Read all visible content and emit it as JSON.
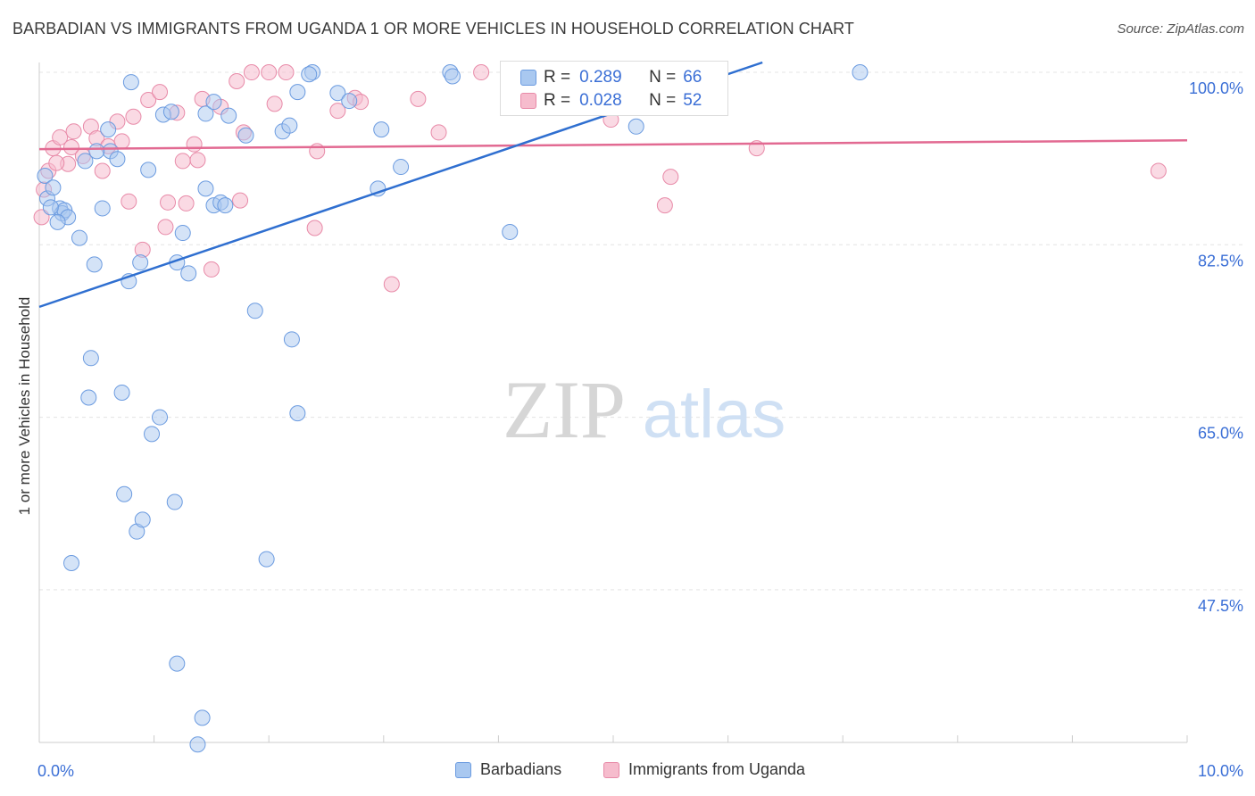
{
  "title": "BARBADIAN VS IMMIGRANTS FROM UGANDA 1 OR MORE VEHICLES IN HOUSEHOLD CORRELATION CHART",
  "source": "Source: ZipAtlas.com",
  "watermark": {
    "zip": "ZIP",
    "atlas": "atlas"
  },
  "legend": {
    "r_label": "R =",
    "n_label": "N =",
    "rows": [
      {
        "r": "0.289",
        "n": "66"
      },
      {
        "r": "0.028",
        "n": "52"
      }
    ]
  },
  "colors": {
    "blue_fill": "#a9c8f0",
    "blue_stroke": "#6b9be0",
    "blue_line": "#2f6fd0",
    "pink_fill": "#f6bccd",
    "pink_stroke": "#e88aa8",
    "pink_line": "#e26a92",
    "grid": "#e4e4e4",
    "axis_text": "#3b6fd6"
  },
  "chart_data": {
    "type": "scatter",
    "title": "BARBADIAN VS IMMIGRANTS FROM UGANDA 1 OR MORE VEHICLES IN HOUSEHOLD CORRELATION CHART",
    "xlabel": "",
    "ylabel": "1 or more Vehicles in Household",
    "xlim": [
      0,
      10
    ],
    "ylim": [
      32,
      101
    ],
    "x_tick_labels": [
      {
        "value": 0,
        "label": "0.0%"
      },
      {
        "value": 10,
        "label": "10.0%"
      }
    ],
    "y_tick_labels": [
      {
        "value": 100,
        "label": "100.0%"
      },
      {
        "value": 82.5,
        "label": "82.5%"
      },
      {
        "value": 65,
        "label": "65.0%"
      },
      {
        "value": 47.5,
        "label": "47.5%"
      }
    ],
    "series": [
      {
        "name": "Barbadians",
        "color": "#6b9be0",
        "trend": {
          "x": [
            0,
            6.3
          ],
          "y": [
            76.2,
            101
          ]
        },
        "points": [
          [
            0.05,
            89.5
          ],
          [
            0.07,
            87.2
          ],
          [
            0.12,
            88.3
          ],
          [
            0.18,
            86.2
          ],
          [
            0.2,
            85.7
          ],
          [
            0.22,
            86.0
          ],
          [
            0.35,
            83.2
          ],
          [
            0.4,
            91
          ],
          [
            0.48,
            80.5
          ],
          [
            0.55,
            86.2
          ],
          [
            0.6,
            94.2
          ],
          [
            0.62,
            92.0
          ],
          [
            0.68,
            91.2
          ],
          [
            0.78,
            78.8
          ],
          [
            0.8,
            99
          ],
          [
            0.88,
            80.7
          ],
          [
            0.95,
            90.1
          ],
          [
            0.98,
            63.3
          ],
          [
            1.05,
            65.0
          ],
          [
            1.08,
            95.7
          ],
          [
            1.15,
            96.0
          ],
          [
            1.2,
            80.7
          ],
          [
            1.25,
            83.7
          ],
          [
            1.3,
            79.6
          ],
          [
            1.45,
            88.2
          ],
          [
            1.45,
            95.8
          ],
          [
            1.52,
            97
          ],
          [
            1.52,
            86.5
          ],
          [
            1.58,
            86.8
          ],
          [
            1.62,
            86.5
          ],
          [
            1.65,
            95.6
          ],
          [
            1.8,
            93.6
          ],
          [
            1.88,
            75.8
          ],
          [
            2.12,
            94.0
          ],
          [
            2.18,
            94.6
          ],
          [
            2.2,
            72.9
          ],
          [
            2.25,
            98
          ],
          [
            2.25,
            65.4
          ],
          [
            2.38,
            100
          ],
          [
            2.6,
            97.9
          ],
          [
            2.7,
            97.1
          ],
          [
            2.95,
            88.2
          ],
          [
            2.98,
            94.2
          ],
          [
            3.15,
            90.4
          ],
          [
            3.58,
            100
          ],
          [
            4.1,
            83.8
          ],
          [
            5.2,
            94.5
          ],
          [
            7.15,
            100
          ],
          [
            0.45,
            71.0
          ],
          [
            0.43,
            67.0
          ],
          [
            0.72,
            67.5
          ],
          [
            0.74,
            57.2
          ],
          [
            0.85,
            53.4
          ],
          [
            0.9,
            54.6
          ],
          [
            1.18,
            56.4
          ],
          [
            0.28,
            50.2
          ],
          [
            1.98,
            50.6
          ],
          [
            1.2,
            40.0
          ],
          [
            1.42,
            34.5
          ],
          [
            1.38,
            31.8
          ],
          [
            0.1,
            86.3
          ],
          [
            0.25,
            85.3
          ],
          [
            2.35,
            99.8
          ],
          [
            0.16,
            84.8
          ],
          [
            3.6,
            99.6
          ],
          [
            0.5,
            92.0
          ]
        ]
      },
      {
        "name": "Immigrants from Uganda",
        "color": "#e88aa8",
        "trend": {
          "x": [
            0,
            10
          ],
          "y": [
            92.2,
            93.1
          ]
        },
        "points": [
          [
            0.02,
            85.3
          ],
          [
            0.04,
            88.1
          ],
          [
            0.08,
            90.0
          ],
          [
            0.12,
            92.3
          ],
          [
            0.18,
            93.4
          ],
          [
            0.25,
            90.7
          ],
          [
            0.28,
            92.4
          ],
          [
            0.3,
            94.0
          ],
          [
            0.38,
            91.5
          ],
          [
            0.45,
            94.5
          ],
          [
            0.5,
            93.3
          ],
          [
            0.55,
            90.0
          ],
          [
            0.6,
            92.5
          ],
          [
            0.68,
            95.0
          ],
          [
            0.72,
            93.0
          ],
          [
            0.78,
            86.9
          ],
          [
            0.82,
            95.5
          ],
          [
            0.9,
            82.0
          ],
          [
            0.95,
            97.2
          ],
          [
            1.05,
            98.0
          ],
          [
            1.1,
            84.3
          ],
          [
            1.12,
            86.8
          ],
          [
            1.2,
            95.9
          ],
          [
            1.25,
            91.0
          ],
          [
            1.28,
            86.7
          ],
          [
            1.35,
            92.7
          ],
          [
            1.38,
            91.1
          ],
          [
            1.42,
            97.3
          ],
          [
            1.5,
            80.0
          ],
          [
            1.58,
            96.5
          ],
          [
            1.72,
            99.1
          ],
          [
            1.75,
            87.0
          ],
          [
            1.78,
            93.9
          ],
          [
            1.85,
            100
          ],
          [
            2.0,
            100
          ],
          [
            2.05,
            96.8
          ],
          [
            2.15,
            100
          ],
          [
            2.4,
            84.2
          ],
          [
            2.42,
            92.0
          ],
          [
            2.6,
            96.1
          ],
          [
            2.75,
            97.4
          ],
          [
            2.8,
            97.0
          ],
          [
            3.07,
            78.5
          ],
          [
            3.3,
            97.3
          ],
          [
            3.48,
            93.9
          ],
          [
            3.85,
            100
          ],
          [
            4.98,
            95.2
          ],
          [
            5.5,
            89.4
          ],
          [
            5.45,
            86.5
          ],
          [
            6.25,
            92.3
          ],
          [
            9.75,
            90.0
          ],
          [
            0.15,
            90.8
          ]
        ]
      }
    ]
  },
  "bottom_legend": [
    {
      "label": "Barbadians"
    },
    {
      "label": "Immigrants from Uganda"
    }
  ]
}
